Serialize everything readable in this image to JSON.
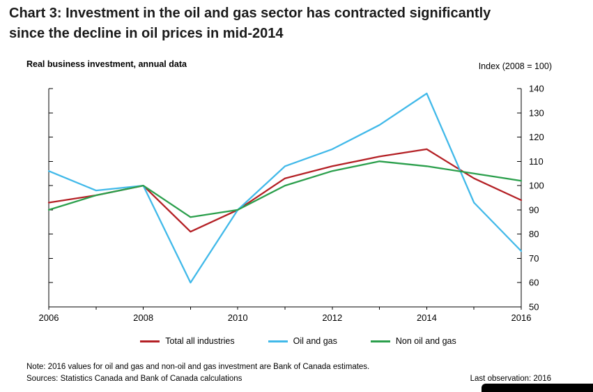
{
  "header": {
    "title_line1": "Chart 3: Investment in the oil and gas sector has contracted significantly",
    "title_line2": "since the decline in oil prices in mid-2014"
  },
  "chart_data": {
    "type": "line",
    "title": "Chart 3: Investment in the oil and gas sector has contracted significantly since the decline in oil prices in mid-2014",
    "subtitle": "Real business investment, annual data",
    "ylabel": "Index (2008 = 100)",
    "x": [
      2006,
      2007,
      2008,
      2009,
      2010,
      2011,
      2012,
      2013,
      2014,
      2015,
      2016
    ],
    "xtick_labels": [
      "2006",
      "2008",
      "2010",
      "2012",
      "2014",
      "2016"
    ],
    "ylim": [
      50,
      140
    ],
    "ytick_step": 10,
    "grid": false,
    "legend_position": "bottom",
    "series": [
      {
        "name": "Total all industries",
        "color": "#b42025",
        "values": [
          93,
          96,
          100,
          81,
          90,
          103,
          108,
          112,
          115,
          103,
          94
        ]
      },
      {
        "name": "Oil and gas",
        "color": "#41b9e9",
        "values": [
          106,
          98,
          100,
          60,
          90,
          108,
          115,
          125,
          138,
          93,
          73
        ]
      },
      {
        "name": "Non oil and gas",
        "color": "#2b9f4c",
        "values": [
          90,
          96,
          100,
          87,
          90,
          100,
          106,
          110,
          108,
          105,
          102
        ]
      }
    ]
  },
  "footer": {
    "note": "Note: 2016 values for oil and gas and non-oil and gas investment are Bank of Canada estimates.",
    "sources": "Sources: Statistics Canada and Bank of Canada calculations",
    "last_observation": "Last observation: 2016"
  }
}
